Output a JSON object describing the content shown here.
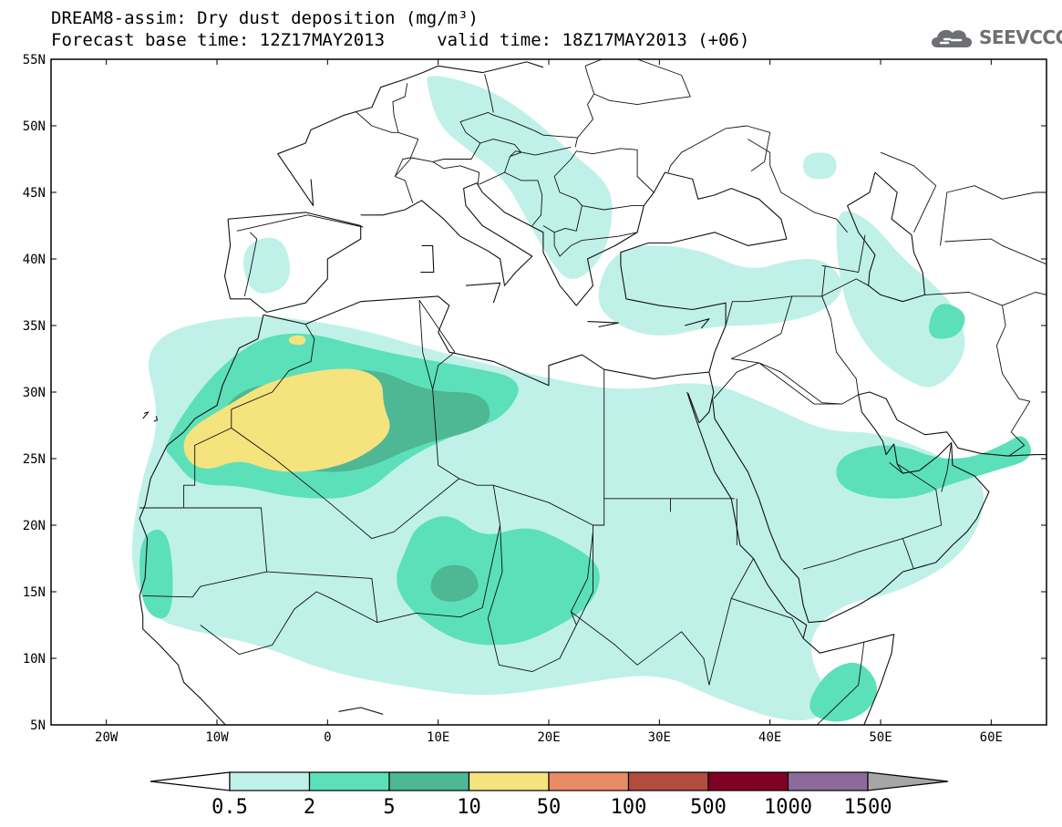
{
  "header": {
    "title": "DREAM8-assim: Dry dust deposition (mg/m³)",
    "subtitle": "Forecast base time: 12Z17MAY2013     valid time: 18Z17MAY2013 (+06)"
  },
  "logo": {
    "text": "SEEVCCC",
    "icon": "cloud-icon"
  },
  "map": {
    "lon_range": [
      -25,
      65
    ],
    "lat_range": [
      5,
      55
    ],
    "lon_ticks": [
      {
        "value": -20,
        "label": "20W"
      },
      {
        "value": -10,
        "label": "10W"
      },
      {
        "value": 0,
        "label": "0"
      },
      {
        "value": 10,
        "label": "10E"
      },
      {
        "value": 20,
        "label": "20E"
      },
      {
        "value": 30,
        "label": "30E"
      },
      {
        "value": 40,
        "label": "40E"
      },
      {
        "value": 50,
        "label": "50E"
      },
      {
        "value": 60,
        "label": "60E"
      }
    ],
    "lat_ticks": [
      {
        "value": 55,
        "label": "55N"
      },
      {
        "value": 50,
        "label": "50N"
      },
      {
        "value": 45,
        "label": "45N"
      },
      {
        "value": 40,
        "label": "40N"
      },
      {
        "value": 35,
        "label": "35N"
      },
      {
        "value": 30,
        "label": "30N"
      },
      {
        "value": 25,
        "label": "25N"
      },
      {
        "value": 20,
        "label": "20N"
      },
      {
        "value": 15,
        "label": "15N"
      },
      {
        "value": 10,
        "label": "10N"
      },
      {
        "value": 5,
        "label": "5N"
      }
    ]
  },
  "colorbar": {
    "levels": [
      "0.5",
      "2",
      "5",
      "10",
      "50",
      "100",
      "500",
      "1000",
      "1500"
    ],
    "colors": [
      "#bff1e8",
      "#5ce0b9",
      "#4db893",
      "#f5e37e",
      "#e98b64",
      "#b24c3f",
      "#800026",
      "#8c6b9c"
    ],
    "under_color": "#ffffff",
    "over_color": "#a6a6a6"
  },
  "chart_data": {
    "type": "heatmap",
    "variable": "Dry dust deposition",
    "units": "mg/m³",
    "xlim": [
      -25,
      65
    ],
    "ylim": [
      5,
      55
    ],
    "bins": [
      "0.5",
      "2",
      "5",
      "10",
      "50",
      "100",
      "500",
      "1000",
      "1500"
    ],
    "regions": [
      {
        "level": "0.5-2",
        "polygon": [
          [
            -17,
            34
          ],
          [
            -8,
            36
          ],
          [
            2,
            35
          ],
          [
            10,
            33
          ],
          [
            20,
            31
          ],
          [
            27,
            30
          ],
          [
            34,
            31
          ],
          [
            40,
            29
          ],
          [
            45,
            27
          ],
          [
            50,
            27
          ],
          [
            56,
            25
          ],
          [
            60,
            23
          ],
          [
            58,
            18
          ],
          [
            52,
            15
          ],
          [
            46,
            14
          ],
          [
            43,
            11
          ],
          [
            46,
            6
          ],
          [
            42,
            5
          ],
          [
            35,
            7
          ],
          [
            30,
            9
          ],
          [
            22,
            8
          ],
          [
            14,
            7
          ],
          [
            6,
            8
          ],
          [
            0,
            9
          ],
          [
            -6,
            11
          ],
          [
            -12,
            12
          ],
          [
            -16,
            13
          ],
          [
            -18,
            17
          ],
          [
            -17,
            23
          ],
          [
            -15,
            28
          ]
        ]
      },
      {
        "level": "0.5-2",
        "polygon": [
          [
            9,
            54
          ],
          [
            14,
            53
          ],
          [
            18,
            51
          ],
          [
            22,
            48
          ],
          [
            25,
            46
          ],
          [
            26,
            44
          ],
          [
            25,
            40
          ],
          [
            22,
            38
          ],
          [
            20,
            40
          ],
          [
            18,
            43
          ],
          [
            16,
            46
          ],
          [
            13,
            48
          ],
          [
            10,
            50
          ],
          [
            9,
            53
          ]
        ]
      },
      {
        "level": "0.5-2",
        "polygon": [
          [
            26,
            41
          ],
          [
            33,
            41
          ],
          [
            38,
            39
          ],
          [
            42,
            40
          ],
          [
            45,
            40
          ],
          [
            47,
            38
          ],
          [
            45,
            36
          ],
          [
            40,
            35
          ],
          [
            35,
            35
          ],
          [
            30,
            34
          ],
          [
            26,
            35
          ],
          [
            24,
            37
          ]
        ]
      },
      {
        "level": "0.5-2",
        "polygon": [
          [
            46,
            44
          ],
          [
            49,
            43
          ],
          [
            52,
            40
          ],
          [
            55,
            38
          ],
          [
            57,
            36
          ],
          [
            58,
            33
          ],
          [
            55,
            30
          ],
          [
            52,
            31
          ],
          [
            49,
            33
          ],
          [
            47,
            36
          ],
          [
            46,
            40
          ]
        ]
      },
      {
        "level": "0.5-2",
        "polygon": [
          [
            43,
            48
          ],
          [
            46,
            48
          ],
          [
            46,
            46
          ],
          [
            43,
            46
          ]
        ]
      },
      {
        "level": "0.5-2",
        "polygon": [
          [
            -8,
            41
          ],
          [
            -4,
            42
          ],
          [
            -3,
            38
          ],
          [
            -7,
            37
          ]
        ]
      },
      {
        "level": "2-5",
        "polygon": [
          [
            -15,
            26
          ],
          [
            -10,
            32
          ],
          [
            -4,
            35
          ],
          [
            5,
            33
          ],
          [
            12,
            32
          ],
          [
            18,
            31
          ],
          [
            16,
            28
          ],
          [
            12,
            27
          ],
          [
            7,
            25
          ],
          [
            3,
            22
          ],
          [
            -3,
            22
          ],
          [
            -8,
            23
          ],
          [
            -12,
            23
          ],
          [
            -14,
            25
          ]
        ]
      },
      {
        "level": "2-5",
        "polygon": [
          [
            8,
            20
          ],
          [
            11,
            21
          ],
          [
            14,
            19
          ],
          [
            18,
            20
          ],
          [
            21,
            19
          ],
          [
            25,
            17
          ],
          [
            24,
            14
          ],
          [
            20,
            12
          ],
          [
            17,
            11
          ],
          [
            13,
            11
          ],
          [
            10,
            12
          ],
          [
            7,
            14
          ],
          [
            6,
            16
          ],
          [
            7,
            18
          ]
        ]
      },
      {
        "level": "2-5",
        "polygon": [
          [
            -17,
            19
          ],
          [
            -15,
            20
          ],
          [
            -14,
            18
          ],
          [
            -14,
            13
          ],
          [
            -16,
            13
          ],
          [
            -17,
            15
          ]
        ]
      },
      {
        "level": "2-5",
        "polygon": [
          [
            49,
            26
          ],
          [
            52,
            26
          ],
          [
            55,
            25
          ],
          [
            58,
            25
          ],
          [
            61,
            26
          ],
          [
            63,
            27
          ],
          [
            64,
            25
          ],
          [
            60,
            24
          ],
          [
            56,
            23
          ],
          [
            53,
            22
          ],
          [
            49,
            22
          ],
          [
            46,
            23
          ],
          [
            46,
            25
          ]
        ]
      },
      {
        "level": "2-5",
        "polygon": [
          [
            45,
            9
          ],
          [
            48,
            10
          ],
          [
            50,
            8
          ],
          [
            49,
            6
          ],
          [
            46,
            5
          ],
          [
            43,
            6
          ]
        ]
      },
      {
        "level": "2-5",
        "polygon": [
          [
            55,
            37
          ],
          [
            58,
            36
          ],
          [
            57,
            34
          ],
          [
            54,
            34
          ]
        ]
      },
      {
        "level": "5-10",
        "polygon": [
          [
            -9,
            30
          ],
          [
            -3,
            31
          ],
          [
            4,
            32
          ],
          [
            9,
            30
          ],
          [
            14,
            30
          ],
          [
            15,
            28
          ],
          [
            13,
            27
          ],
          [
            8,
            26
          ],
          [
            3,
            24
          ],
          [
            -2,
            24
          ],
          [
            -6,
            25
          ],
          [
            -10,
            26
          ]
        ]
      },
      {
        "level": "5-10",
        "polygon": [
          [
            10,
            17
          ],
          [
            13,
            17
          ],
          [
            14,
            15
          ],
          [
            11,
            14
          ],
          [
            9,
            15
          ]
        ]
      },
      {
        "level": "10-50",
        "polygon": [
          [
            -13,
            27
          ],
          [
            -9,
            29
          ],
          [
            -5,
            31
          ],
          [
            2,
            32
          ],
          [
            5,
            31
          ],
          [
            5,
            29
          ],
          [
            6,
            27
          ],
          [
            3,
            25
          ],
          [
            -1,
            24
          ],
          [
            -5,
            24
          ],
          [
            -8,
            25
          ],
          [
            -11,
            24
          ],
          [
            -13,
            25
          ]
        ]
      },
      {
        "level": "10-50",
        "polygon": [
          [
            -3.5,
            34.2
          ],
          [
            -2,
            34.3
          ],
          [
            -2,
            33.5
          ],
          [
            -3.5,
            33.6
          ]
        ]
      }
    ]
  }
}
